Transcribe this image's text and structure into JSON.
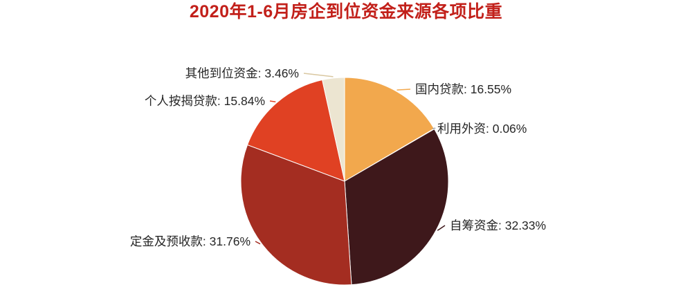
{
  "chart_data": {
    "type": "pie",
    "title": "2020年1-6月房企到位资金来源各项比重",
    "title_color": "#c2201a",
    "unit": "%",
    "legend_position": "none",
    "label_style": "outside-with-leader-lines",
    "start_angle": "12-oclock",
    "direction": "clockwise",
    "categories": [
      "国内贷款",
      "利用外资",
      "自筹资金",
      "定金及预收款",
      "个人按揭贷款",
      "其他到位资金"
    ],
    "values": [
      16.55,
      0.06,
      32.33,
      31.76,
      15.84,
      3.46
    ],
    "segments": [
      {
        "key": "domestic-loans",
        "label": "国内贷款",
        "value": 16.55,
        "text": "国内贷款: 16.55%",
        "color": "#f2a84d"
      },
      {
        "key": "foreign-capital",
        "label": "利用外资",
        "value": 0.06,
        "text": "利用外资: 0.06%",
        "color": "#9e9e9e"
      },
      {
        "key": "self-raised-funds",
        "label": "自筹资金",
        "value": 32.33,
        "text": "自筹资金: 32.33%",
        "color": "#3e181b"
      },
      {
        "key": "deposits-advance",
        "label": "定金及预收款",
        "value": 31.76,
        "text": "定金及预收款: 31.76%",
        "color": "#a42d21"
      },
      {
        "key": "personal-mortgage",
        "label": "个人按揭贷款",
        "value": 15.84,
        "text": "个人按揭贷款: 15.84%",
        "color": "#e04123"
      },
      {
        "key": "other-funds",
        "label": "其他到位资金",
        "value": 3.46,
        "text": "其他到位资金: 3.46%",
        "color": "#ece5d1",
        "leader_color": "#d9c7a0"
      }
    ],
    "label_text_color": "#262626"
  }
}
